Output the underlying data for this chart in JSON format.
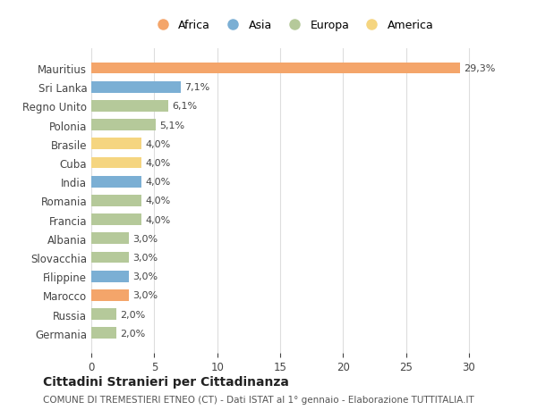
{
  "categories": [
    "Germania",
    "Russia",
    "Marocco",
    "Filippine",
    "Slovacchia",
    "Albania",
    "Francia",
    "Romania",
    "India",
    "Cuba",
    "Brasile",
    "Polonia",
    "Regno Unito",
    "Sri Lanka",
    "Mauritius"
  ],
  "values": [
    2.0,
    2.0,
    3.0,
    3.0,
    3.0,
    3.0,
    4.0,
    4.0,
    4.0,
    4.0,
    4.0,
    5.1,
    6.1,
    7.1,
    29.3
  ],
  "labels": [
    "2,0%",
    "2,0%",
    "3,0%",
    "3,0%",
    "3,0%",
    "3,0%",
    "4,0%",
    "4,0%",
    "4,0%",
    "4,0%",
    "4,0%",
    "5,1%",
    "6,1%",
    "7,1%",
    "29,3%"
  ],
  "colors": [
    "#b5c99a",
    "#b5c99a",
    "#f4a56a",
    "#7bafd4",
    "#b5c99a",
    "#b5c99a",
    "#b5c99a",
    "#b5c99a",
    "#7bafd4",
    "#f5d580",
    "#f5d580",
    "#b5c99a",
    "#b5c99a",
    "#7bafd4",
    "#f4a56a"
  ],
  "legend_labels": [
    "Africa",
    "Asia",
    "Europa",
    "America"
  ],
  "legend_colors": [
    "#f4a56a",
    "#7bafd4",
    "#b5c99a",
    "#f5d580"
  ],
  "xlim": [
    0,
    32
  ],
  "xticks": [
    0,
    5,
    10,
    15,
    20,
    25,
    30
  ],
  "title": "Cittadini Stranieri per Cittadinanza",
  "subtitle": "COMUNE DI TREMESTIERI ETNEO (CT) - Dati ISTAT al 1° gennaio - Elaborazione TUTTITALIA.IT",
  "background_color": "#ffffff",
  "grid_color": "#dddddd",
  "bar_height": 0.6
}
